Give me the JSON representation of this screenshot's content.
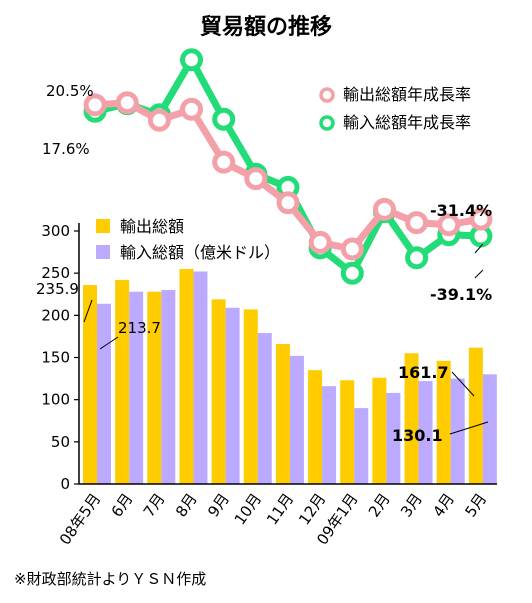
{
  "chart_data": {
    "type": "bar",
    "title": "貿易額の推移",
    "source": "※財政部統計よりＹＳＮ作成",
    "categories": [
      "08年5月",
      "6月",
      "7月",
      "8月",
      "9月",
      "10月",
      "11月",
      "12月",
      "09年1月",
      "2月",
      "3月",
      "4月",
      "5月"
    ],
    "bar_axis": {
      "ylim": [
        0,
        300
      ],
      "ticks": [
        "0",
        "50",
        "100",
        "150",
        "200",
        "250",
        "300"
      ]
    },
    "bar_series": [
      {
        "name": "輸出総額",
        "color": "#FFCC00",
        "values": [
          235.9,
          242,
          228,
          255,
          219,
          207,
          166,
          135,
          123,
          126,
          155,
          146,
          161.7
        ]
      },
      {
        "name": "輸入総額（億米ドル）",
        "color": "#BBAAFF",
        "values": [
          213.7,
          228,
          230,
          252,
          209,
          179,
          152,
          116,
          90,
          108,
          122,
          125,
          130.1
        ]
      }
    ],
    "line_series": [
      {
        "name": "輸出総額年成長率",
        "color": "#F4A0A8",
        "values": [
          20.5,
          21.5,
          13.5,
          18.5,
          -5.5,
          -13,
          -24,
          -42,
          -45,
          -27,
          -33,
          -34,
          -31.4
        ]
      },
      {
        "name": "輸入総額年成長率",
        "color": "#22DD77",
        "values": [
          17.6,
          21.0,
          16,
          41,
          14,
          -11,
          -17,
          -44.5,
          -56,
          -28,
          -49,
          -38.5,
          -39.1
        ]
      }
    ],
    "annotations": {
      "export_bar_first": "235.9",
      "import_bar_first": "213.7",
      "export_bar_last": "161.7",
      "import_bar_last": "130.1",
      "export_rate_first": "20.5%",
      "import_rate_first": "17.6%",
      "export_rate_last": "-31.4%",
      "import_rate_last": "-39.1%"
    }
  }
}
